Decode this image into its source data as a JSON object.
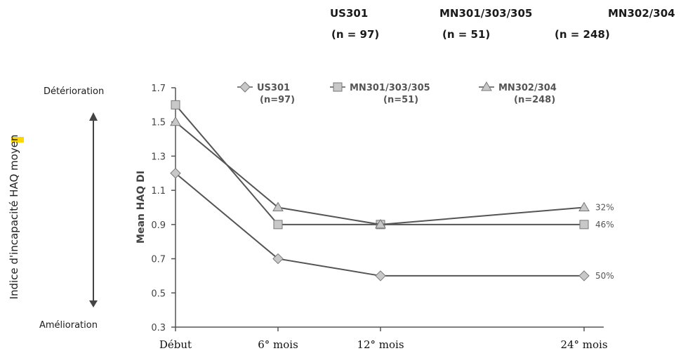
{
  "header": {
    "groups": [
      {
        "name": "US301",
        "n": "(n = 97)"
      },
      {
        "name": "MN301/303/305",
        "n": "(n = 51)"
      },
      {
        "name": "MN302/304",
        "n": "(n = 248)"
      }
    ]
  },
  "side": {
    "top_label": "Détérioration",
    "bottom_label": "Amélioration",
    "french_axis_label": "Indice d'incapacité HAQ moyen"
  },
  "colors": {
    "line": "#555555",
    "marker_fill": "#c8c8c8",
    "highlight": "#ffd700"
  },
  "chart_data": {
    "type": "line",
    "xlabel": "",
    "ylabel": "Mean HAQ DI",
    "categories": [
      "Début",
      "6e mois",
      "12e mois",
      "24e mois"
    ],
    "ylim": [
      0.3,
      1.7
    ],
    "yticks": [
      0.3,
      0.5,
      0.7,
      0.9,
      1.1,
      1.3,
      1.5,
      1.7
    ],
    "series": [
      {
        "name": "US301",
        "n_label": "(n=97)",
        "marker": "diamond",
        "values": [
          1.2,
          0.7,
          0.6,
          0.6
        ],
        "end_label": "50%"
      },
      {
        "name": "MN301/303/305",
        "n_label": "(n=51)",
        "marker": "square",
        "values": [
          1.6,
          0.9,
          0.9,
          0.9
        ],
        "end_label": "46%"
      },
      {
        "name": "MN302/304",
        "n_label": "(n=248)",
        "marker": "triangle",
        "values": [
          1.5,
          1.0,
          0.9,
          1.0
        ],
        "end_label": "32%"
      }
    ],
    "legend_position": "top"
  }
}
